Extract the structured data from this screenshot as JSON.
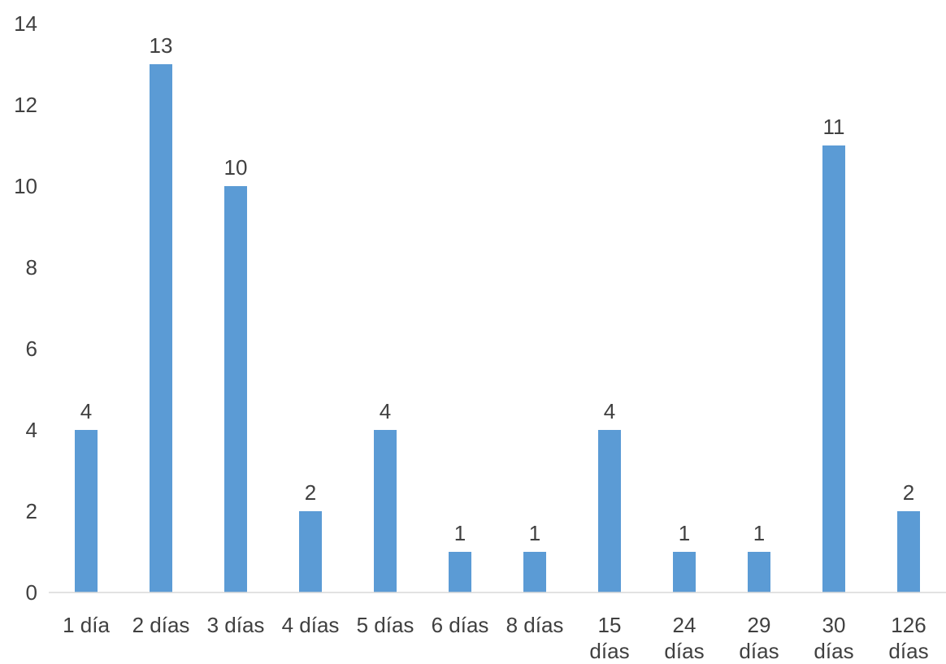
{
  "chart_data": {
    "type": "bar",
    "title": "",
    "xlabel": "",
    "ylabel": "",
    "ylim": [
      0,
      14
    ],
    "yticks": [
      "0",
      "2",
      "4",
      "6",
      "8",
      "10",
      "12",
      "14"
    ],
    "grid": false,
    "legend": "none",
    "bar_color": "#5B9BD5",
    "categories": [
      [
        "1 día"
      ],
      [
        "2 días"
      ],
      [
        "3 días"
      ],
      [
        "4 días"
      ],
      [
        "5 días"
      ],
      [
        "6 días"
      ],
      [
        "8 días"
      ],
      [
        "15",
        "días"
      ],
      [
        "24",
        "días"
      ],
      [
        "29",
        "días"
      ],
      [
        "30",
        "días"
      ],
      [
        "126",
        "días"
      ]
    ],
    "values": [
      4,
      13,
      10,
      2,
      4,
      1,
      1,
      4,
      1,
      1,
      11,
      2
    ],
    "data_labels": [
      "4",
      "13",
      "10",
      "2",
      "4",
      "1",
      "1",
      "4",
      "1",
      "1",
      "11",
      "2"
    ]
  }
}
